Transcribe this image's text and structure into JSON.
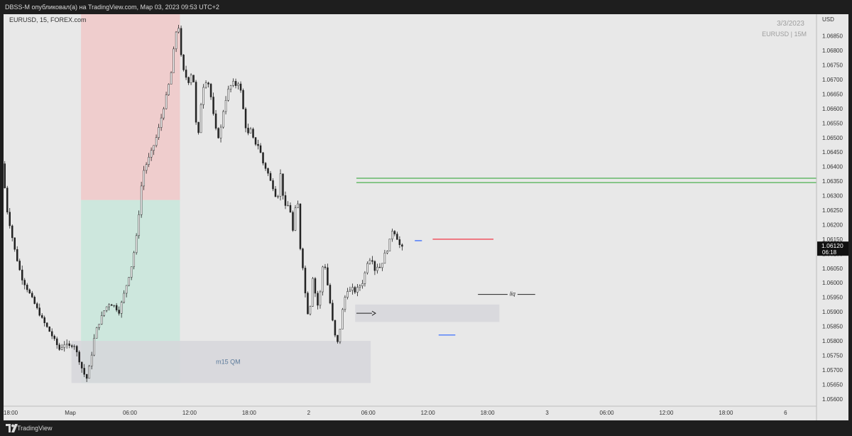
{
  "header": {
    "publish_line": "DBSS-M опубликовал(а) на TradingView.com, Мар 03, 2023 09:53 UTC+2"
  },
  "footer": {
    "brand": "TradingView"
  },
  "chart_data": {
    "type": "candlestick",
    "symbol_label": "EURUSD, 15, FOREX.com",
    "watermark_date": "3/3/2023",
    "watermark_symbol": "EURUSD | 15M",
    "currency": "USD",
    "y_ticks": [
      "1.06850",
      "1.06800",
      "1.06750",
      "1.06700",
      "1.06650",
      "1.06600",
      "1.06550",
      "1.06500",
      "1.06450",
      "1.06400",
      "1.06350",
      "1.06300",
      "1.06250",
      "1.06200",
      "1.06150",
      "1.06100",
      "1.06050",
      "1.06000",
      "1.05950",
      "1.05900",
      "1.05850",
      "1.05800",
      "1.05750",
      "1.05700",
      "1.05650",
      "1.05600"
    ],
    "ylim": [
      1.05575,
      1.06925
    ],
    "last_price": "1.06120",
    "countdown": "06:18",
    "x_ticks": [
      {
        "label": "18:00",
        "day": 0.75
      },
      {
        "label": "Мар",
        "day": 1.0
      },
      {
        "label": "06:00",
        "day": 1.25
      },
      {
        "label": "12:00",
        "day": 1.5
      },
      {
        "label": "18:00",
        "day": 1.75
      },
      {
        "label": "2",
        "day": 2.0
      },
      {
        "label": "06:00",
        "day": 2.25
      },
      {
        "label": "12:00",
        "day": 2.5
      },
      {
        "label": "18:00",
        "day": 2.75
      },
      {
        "label": "3",
        "day": 3.0
      },
      {
        "label": "06:00",
        "day": 3.25
      },
      {
        "label": "12:00",
        "day": 3.5
      },
      {
        "label": "18:00",
        "day": 3.75
      },
      {
        "label": "6",
        "day": 4.0
      }
    ],
    "xlim": [
      0.72,
      4.13
    ],
    "price_path": [
      [
        0.72,
        1.0641
      ],
      [
        0.74,
        1.0625
      ],
      [
        0.77,
        1.0612
      ],
      [
        0.8,
        1.0602
      ],
      [
        0.83,
        1.0597
      ],
      [
        0.86,
        1.0592
      ],
      [
        0.89,
        1.0587
      ],
      [
        0.92,
        1.0583
      ],
      [
        0.94,
        1.058
      ],
      [
        0.96,
        1.0577
      ],
      [
        0.98,
        1.0579
      ],
      [
        1.0,
        1.0578
      ],
      [
        1.02,
        1.0579
      ],
      [
        1.04,
        1.0574
      ],
      [
        1.06,
        1.0569
      ],
      [
        1.075,
        1.0567
      ],
      [
        1.09,
        1.0573
      ],
      [
        1.11,
        1.0583
      ],
      [
        1.13,
        1.0587
      ],
      [
        1.15,
        1.0591
      ],
      [
        1.17,
        1.0593
      ],
      [
        1.19,
        1.0592
      ],
      [
        1.21,
        1.059
      ],
      [
        1.23,
        1.0596
      ],
      [
        1.26,
        1.0605
      ],
      [
        1.28,
        1.0614
      ],
      [
        1.29,
        1.0621
      ],
      [
        1.3,
        1.0631
      ],
      [
        1.31,
        1.0638
      ],
      [
        1.33,
        1.0642
      ],
      [
        1.35,
        1.0646
      ],
      [
        1.37,
        1.0651
      ],
      [
        1.39,
        1.0658
      ],
      [
        1.41,
        1.0665
      ],
      [
        1.43,
        1.0673
      ],
      [
        1.44,
        1.0681
      ],
      [
        1.45,
        1.0687
      ],
      [
        1.46,
        1.0688
      ],
      [
        1.47,
        1.0678
      ],
      [
        1.48,
        1.0673
      ],
      [
        1.49,
        1.0671
      ],
      [
        1.5,
        1.0669
      ],
      [
        1.51,
        1.0672
      ],
      [
        1.52,
        1.0671
      ],
      [
        1.53,
        1.0663
      ],
      [
        1.535,
        1.0647
      ],
      [
        1.54,
        1.0648
      ],
      [
        1.55,
        1.0659
      ],
      [
        1.56,
        1.0667
      ],
      [
        1.57,
        1.0669
      ],
      [
        1.58,
        1.067
      ],
      [
        1.59,
        1.0667
      ],
      [
        1.6,
        1.0661
      ],
      [
        1.61,
        1.0655
      ],
      [
        1.62,
        1.0651
      ],
      [
        1.63,
        1.065
      ],
      [
        1.64,
        1.0655
      ],
      [
        1.65,
        1.0661
      ],
      [
        1.66,
        1.0664
      ],
      [
        1.67,
        1.0667
      ],
      [
        1.68,
        1.0668
      ],
      [
        1.69,
        1.0669
      ],
      [
        1.7,
        1.0668
      ],
      [
        1.71,
        1.0669
      ],
      [
        1.72,
        1.0666
      ],
      [
        1.73,
        1.066
      ],
      [
        1.74,
        1.0654
      ],
      [
        1.75,
        1.0651
      ],
      [
        1.76,
        1.0653
      ],
      [
        1.77,
        1.065
      ],
      [
        1.78,
        1.0648
      ],
      [
        1.79,
        1.0648
      ],
      [
        1.8,
        1.0646
      ],
      [
        1.81,
        1.0642
      ],
      [
        1.82,
        1.064
      ],
      [
        1.83,
        1.0639
      ],
      [
        1.84,
        1.0636
      ],
      [
        1.85,
        1.0634
      ],
      [
        1.86,
        1.0632
      ],
      [
        1.87,
        1.0629
      ],
      [
        1.88,
        1.0631
      ],
      [
        1.885,
        1.0639
      ],
      [
        1.89,
        1.0634
      ],
      [
        1.9,
        1.0629
      ],
      [
        1.91,
        1.0625
      ],
      [
        1.92,
        1.0627
      ],
      [
        1.93,
        1.0624
      ],
      [
        1.94,
        1.0617
      ],
      [
        1.95,
        1.0626
      ],
      [
        1.96,
        1.0627
      ],
      [
        1.965,
        1.0619
      ],
      [
        1.97,
        1.0612
      ],
      [
        1.98,
        1.0606
      ],
      [
        1.99,
        1.0597
      ],
      [
        2.0,
        1.059
      ],
      [
        2.01,
        1.0588
      ],
      [
        2.015,
        1.0601
      ],
      [
        2.02,
        1.0603
      ],
      [
        2.03,
        1.0598
      ],
      [
        2.04,
        1.0592
      ],
      [
        2.05,
        1.0593
      ],
      [
        2.06,
        1.0604
      ],
      [
        2.07,
        1.0608
      ],
      [
        2.08,
        1.0602
      ],
      [
        2.09,
        1.0596
      ],
      [
        2.1,
        1.059
      ],
      [
        2.11,
        1.0584
      ],
      [
        2.12,
        1.058
      ],
      [
        2.13,
        1.0579
      ],
      [
        2.14,
        1.0587
      ],
      [
        2.15,
        1.0592
      ],
      [
        2.16,
        1.0596
      ],
      [
        2.17,
        1.0598
      ],
      [
        2.18,
        1.0597
      ],
      [
        2.19,
        1.0598
      ],
      [
        2.2,
        1.0597
      ],
      [
        2.21,
        1.0598
      ],
      [
        2.22,
        1.0599
      ],
      [
        2.23,
        1.06
      ],
      [
        2.24,
        1.0603
      ],
      [
        2.25,
        1.0607
      ],
      [
        2.26,
        1.0608
      ],
      [
        2.27,
        1.0609
      ],
      [
        2.28,
        1.0604
      ],
      [
        2.29,
        1.0606
      ],
      [
        2.3,
        1.0605
      ],
      [
        2.31,
        1.0606
      ],
      [
        2.32,
        1.0609
      ],
      [
        2.33,
        1.0611
      ],
      [
        2.34,
        1.0612
      ],
      [
        2.35,
        1.0617
      ],
      [
        2.36,
        1.0619
      ],
      [
        2.37,
        1.0616
      ],
      [
        2.38,
        1.0615
      ],
      [
        2.39,
        1.0612
      ]
    ],
    "zones": [
      {
        "type": "stop",
        "color": "#f0c8c8",
        "day_from": 1.045,
        "day_to": 1.46,
        "price_top": 1.06925,
        "price_bottom": 1.06285
      },
      {
        "type": "target",
        "color": "#c8e6da",
        "day_from": 1.045,
        "day_to": 1.46,
        "price_top": 1.06285,
        "price_bottom": 1.05655
      },
      {
        "type": "demand",
        "label": "m15 QM",
        "color": "#d6d6da",
        "day_from": 1.005,
        "day_to": 2.26,
        "price_top": 1.058,
        "price_bottom": 1.05655
      },
      {
        "type": "demand",
        "label": "",
        "color": "#d6d6da",
        "day_from": 2.195,
        "day_to": 2.8,
        "price_top": 1.05925,
        "price_bottom": 1.05865
      }
    ],
    "levels": [
      {
        "price": 1.0636,
        "day_from": 2.2,
        "day_to": 4.13,
        "color": "#4caf50"
      },
      {
        "price": 1.06345,
        "day_from": 2.2,
        "day_to": 4.13,
        "color": "#4caf50"
      },
      {
        "price": 1.0615,
        "day_from": 2.52,
        "day_to": 2.775,
        "color": "#f23645"
      },
      {
        "price": 1.06145,
        "day_from": 2.445,
        "day_to": 2.475,
        "color": "#2962ff"
      },
      {
        "price": 1.0582,
        "day_from": 2.545,
        "day_to": 2.615,
        "color": "#2962ff"
      },
      {
        "price": 1.0596,
        "day_from": 2.71,
        "day_to": 2.95,
        "color": "#3a3a3a"
      }
    ],
    "annotations": [
      {
        "text": "liq",
        "day": 2.855,
        "price": 1.05963
      }
    ]
  }
}
